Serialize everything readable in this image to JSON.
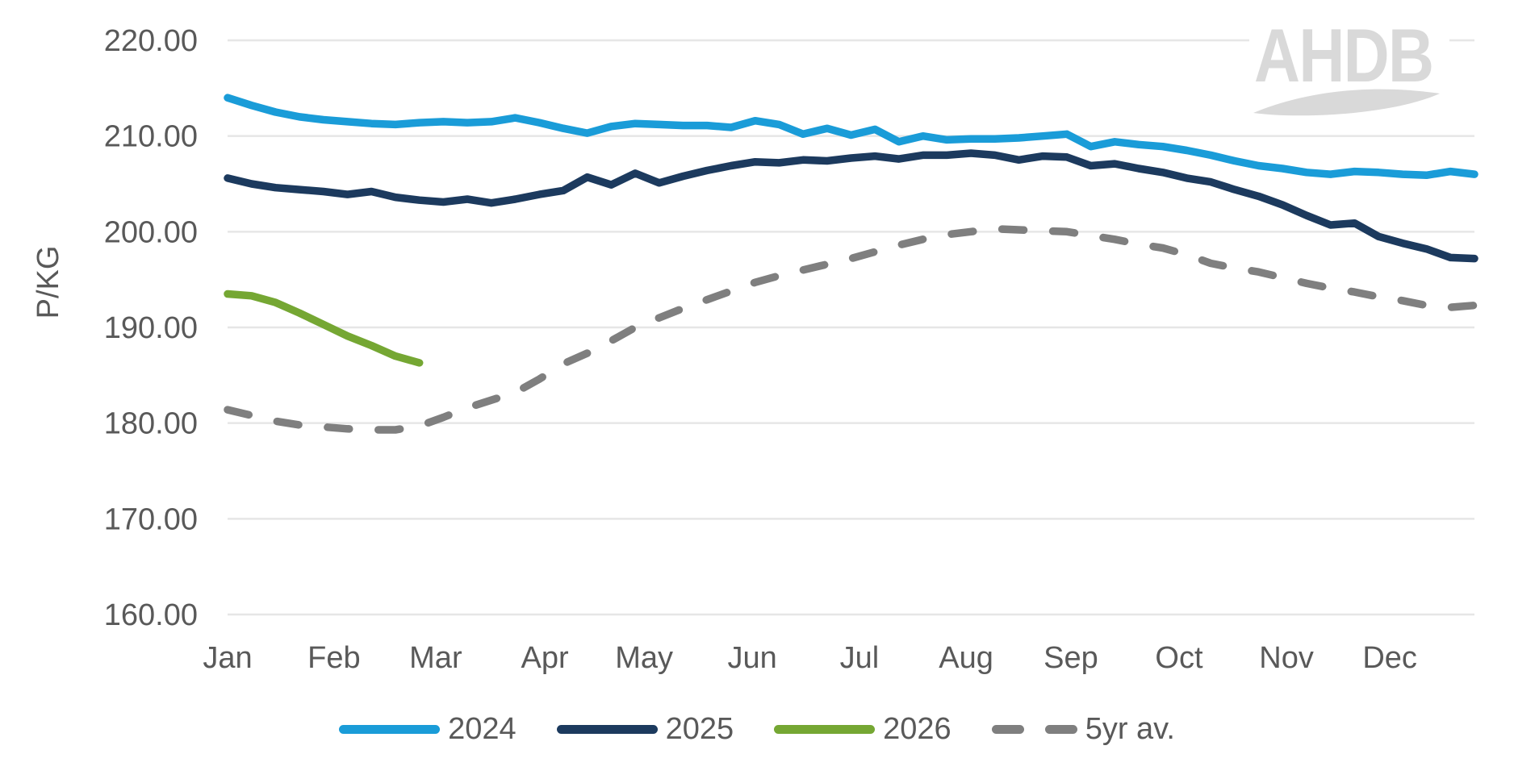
{
  "logo": {
    "text": "AHDB",
    "color": "#d9d9d9"
  },
  "chart_data": {
    "type": "line",
    "title": "",
    "xlabel": "",
    "ylabel": "P/KG",
    "ylim": [
      160,
      220
    ],
    "y_tick_step": 10,
    "y_tick_labels": [
      "160.00",
      "170.00",
      "180.00",
      "190.00",
      "200.00",
      "210.00",
      "220.00"
    ],
    "x_tick_labels": [
      "Jan",
      "Feb",
      "Mar",
      "Apr",
      "May",
      "Jun",
      "Jul",
      "Aug",
      "Sep",
      "Oct",
      "Nov",
      "Dec"
    ],
    "month_tick_weeks": [
      0,
      4.44,
      8.68,
      13.23,
      17.37,
      21.88,
      26.35,
      30.8,
      35.17,
      39.68,
      44.16,
      48.47
    ],
    "weeks_total": 52,
    "grid": "horizontal-only",
    "grid_color": "#e6e6e6",
    "tick_text_color": "#595959",
    "legend_position": "bottom-center",
    "series": [
      {
        "name": "2024",
        "color": "#1a9cd8",
        "style": "solid",
        "start_week": 0,
        "values": [
          214.0,
          213.2,
          212.5,
          212.0,
          211.7,
          211.5,
          211.3,
          211.2,
          211.4,
          211.5,
          211.4,
          211.5,
          211.9,
          211.4,
          210.8,
          210.3,
          211.0,
          211.3,
          211.2,
          211.1,
          211.1,
          210.9,
          211.6,
          211.2,
          210.2,
          210.8,
          210.1,
          210.7,
          209.4,
          210.0,
          209.6,
          209.7,
          209.7,
          209.8,
          210.0,
          210.2,
          208.9,
          209.4,
          209.1,
          208.9,
          208.5,
          208.0,
          207.4,
          206.9,
          206.6,
          206.2,
          206.0,
          206.3,
          206.2,
          206.0,
          205.9,
          206.3,
          206.0
        ]
      },
      {
        "name": "2025",
        "color": "#1c3a5e",
        "style": "solid",
        "start_week": 0,
        "values": [
          205.6,
          205.0,
          204.6,
          204.4,
          204.2,
          203.9,
          204.2,
          203.6,
          203.3,
          203.1,
          203.4,
          203.0,
          203.4,
          203.9,
          204.3,
          205.7,
          204.9,
          206.1,
          205.1,
          205.8,
          206.4,
          206.9,
          207.3,
          207.2,
          207.5,
          207.4,
          207.7,
          207.9,
          207.6,
          208.0,
          208.0,
          208.2,
          208.0,
          207.5,
          207.9,
          207.8,
          206.9,
          207.1,
          206.6,
          206.2,
          205.6,
          205.2,
          204.4,
          203.7,
          202.8,
          201.7,
          200.7,
          200.9,
          199.5,
          198.8,
          198.2,
          197.3,
          197.2
        ]
      },
      {
        "name": "2026",
        "color": "#75a733",
        "style": "solid",
        "start_week": 0,
        "values": [
          193.5,
          193.3,
          192.6,
          191.5,
          190.3,
          189.1,
          188.1,
          187.0,
          186.3
        ]
      },
      {
        "name": "5yr av.",
        "color": "#7f7f7f",
        "style": "dashed",
        "start_week": 0,
        "values": [
          181.4,
          180.8,
          180.2,
          179.8,
          179.6,
          179.4,
          179.3,
          179.3,
          179.7,
          180.6,
          181.6,
          182.4,
          183.2,
          184.6,
          186.2,
          187.3,
          188.6,
          190.0,
          191.0,
          192.0,
          192.9,
          193.8,
          194.7,
          195.4,
          196.0,
          196.6,
          197.2,
          197.9,
          198.6,
          199.2,
          199.7,
          200.0,
          200.3,
          200.2,
          200.1,
          200.0,
          199.6,
          199.2,
          198.7,
          198.3,
          197.6,
          196.7,
          196.2,
          195.8,
          195.2,
          194.6,
          194.1,
          193.7,
          193.2,
          192.8,
          192.3,
          192.1,
          192.3
        ]
      }
    ]
  }
}
